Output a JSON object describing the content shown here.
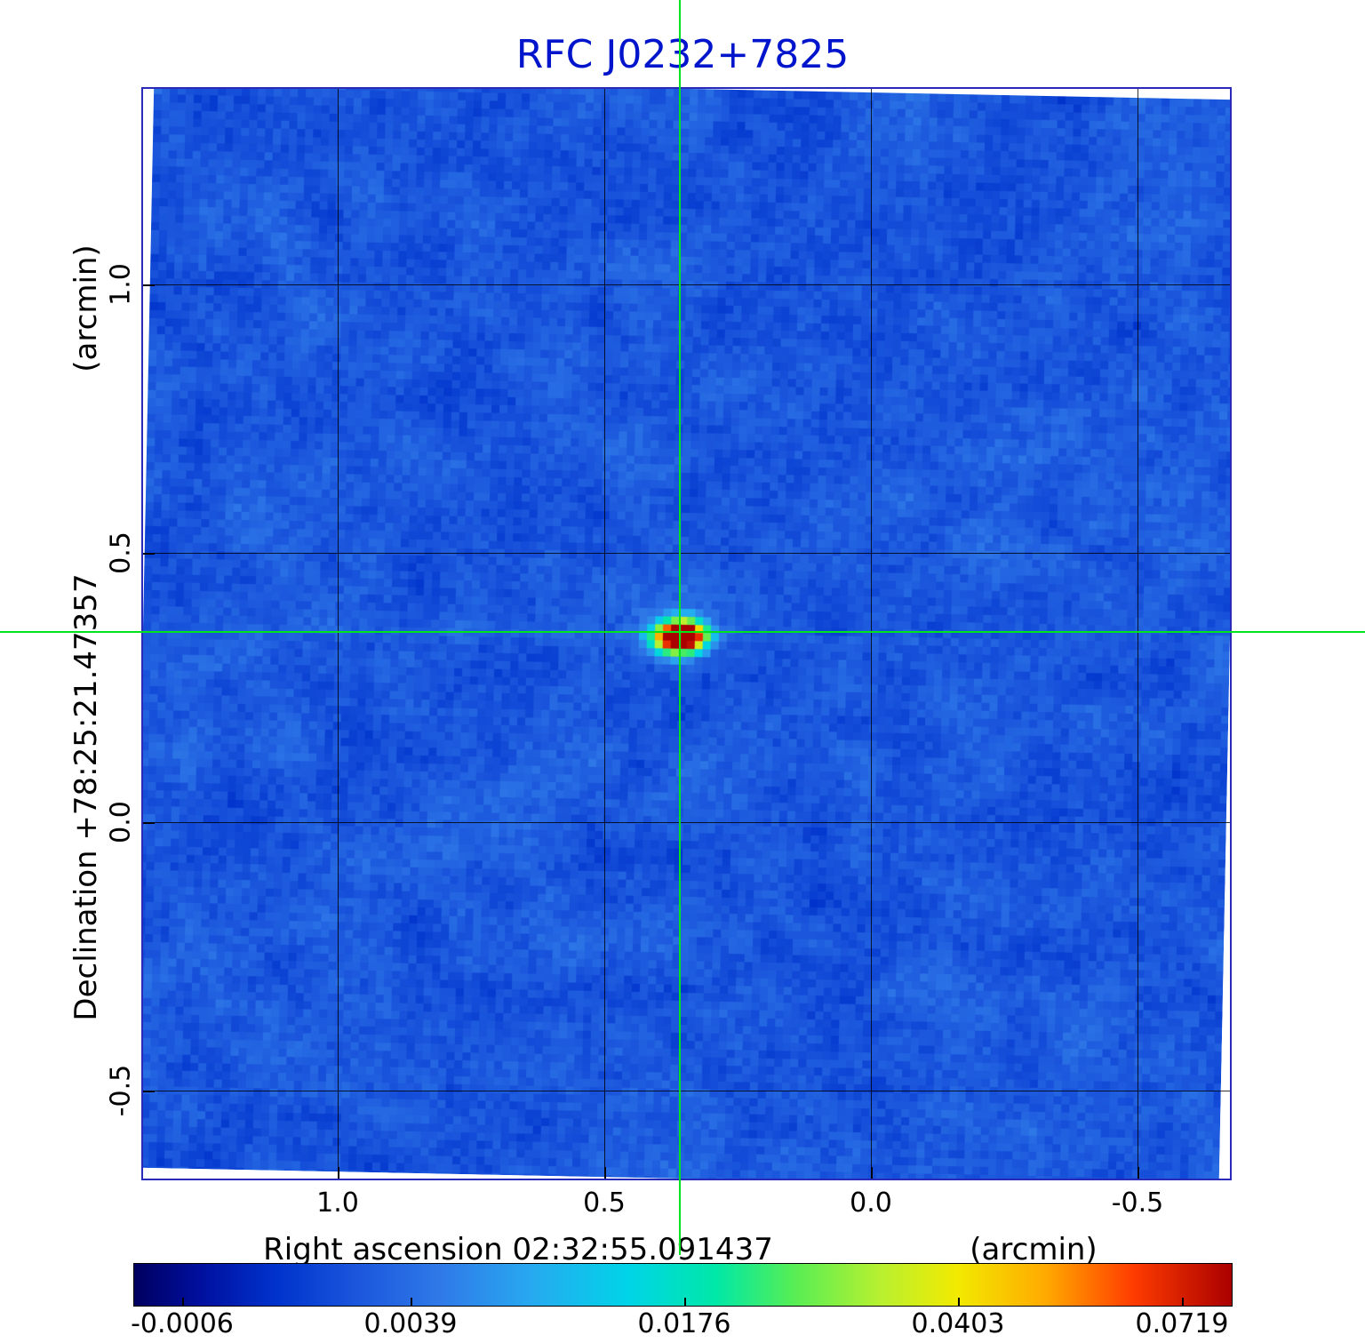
{
  "title": "RFC J0232+7825",
  "colors": {
    "title": "#0014cc",
    "frame_border": "#2a2ab8",
    "crosshair": "#00e41e",
    "grid": "#000000",
    "background_sky": "#1a55dc"
  },
  "y_axis": {
    "unit_label": "(arcmin)",
    "axis_label": "Declination  +78:25:21.47357",
    "ticks": [
      "1.0",
      "0.5",
      "0.0",
      "-0.5"
    ]
  },
  "x_axis": {
    "axis_label": "Right ascension  02:32:55.091437",
    "unit_label": "(arcmin)",
    "ticks": [
      "1.0",
      "0.5",
      "0.0",
      "-0.5"
    ]
  },
  "colorbar": {
    "tick_labels": [
      "-0.0006",
      "0.0039",
      "0.0176",
      "0.0403",
      "0.0719"
    ],
    "gradient_stops": [
      {
        "p": 0,
        "c": "#000060"
      },
      {
        "p": 6,
        "c": "#000f9e"
      },
      {
        "p": 13,
        "c": "#0033cc"
      },
      {
        "p": 20,
        "c": "#1a55dc"
      },
      {
        "p": 28,
        "c": "#2f7ae8"
      },
      {
        "p": 36,
        "c": "#28a8f0"
      },
      {
        "p": 45,
        "c": "#00d4e8"
      },
      {
        "p": 53,
        "c": "#00e8a8"
      },
      {
        "p": 60,
        "c": "#55ee55"
      },
      {
        "p": 68,
        "c": "#b8f030"
      },
      {
        "p": 75,
        "c": "#f2ea00"
      },
      {
        "p": 83,
        "c": "#ffaa00"
      },
      {
        "p": 91,
        "c": "#ff3c00"
      },
      {
        "p": 100,
        "c": "#aa0000"
      }
    ]
  },
  "chart_data": {
    "type": "heatmap",
    "title": "RFC J0232+7825",
    "xlabel": "Right ascension 02:32:55.091437 (arcmin)",
    "ylabel": "Declination +78:25:21.47357 (arcmin)",
    "x_range_arcmin": [
      1.35,
      -0.69
    ],
    "y_range_arcmin": [
      -0.66,
      1.35
    ],
    "x_ticks": [
      1.0,
      0.5,
      0.0,
      -0.5
    ],
    "y_ticks": [
      1.0,
      0.5,
      0.0,
      -0.5
    ],
    "colorbar_ticks": [
      -0.0006,
      0.0039,
      0.0176,
      0.0403,
      0.0719
    ],
    "intensity_min": -0.0006,
    "intensity_max": 0.0719,
    "colormap": "rainbow",
    "grid": true,
    "source_peak": {
      "x_arcmin": 0.34,
      "y_arcmin": 0.35,
      "peak_value": 0.0719
    },
    "crosshair_arcmin": {
      "x": 0.34,
      "y": 0.35
    },
    "background_level": 0.001,
    "image_rotation_deg": 1.15
  }
}
